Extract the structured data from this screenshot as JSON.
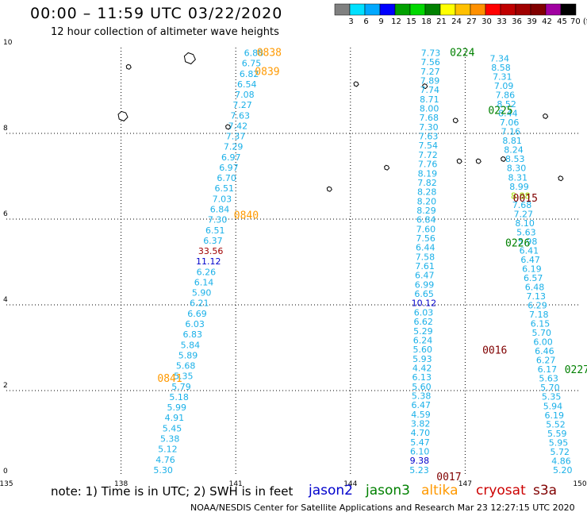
{
  "title": "00:00 – 11:59 UTC 03/22/2020",
  "subtitle": "12 hour collection of altimeter wave heights",
  "note": "note: 1) Time is in UTC; 2) SWH is in feet",
  "credit": "NOAA/NESDIS Center for Satellite Applications and Research   Mar 23 12:27:15 UTC 2020",
  "colorbar": {
    "colors": [
      "#808080",
      "#00e0ff",
      "#00a8ff",
      "#0000ff",
      "#00a000",
      "#00d800",
      "#008000",
      "#ffff00",
      "#ffc000",
      "#ff9000",
      "#ff0000",
      "#c00000",
      "#a00000",
      "#800000",
      "#a000a0",
      "#000000"
    ],
    "labels": [
      "3",
      "6",
      "9",
      "12",
      "15",
      "18",
      "21",
      "24",
      "27",
      "30",
      "33",
      "36",
      "39",
      "42",
      "45",
      "70 (ft)"
    ]
  },
  "map": {
    "lon_range": [
      135,
      150
    ],
    "lat_range": [
      0,
      10
    ],
    "lon_ticks": [
      "135",
      "138",
      "141",
      "144",
      "147",
      "150"
    ],
    "lat_ticks": [
      "0",
      "2",
      "4",
      "6",
      "8",
      "10"
    ]
  },
  "satellites": [
    {
      "name": "jason2",
      "color": "#0000cc"
    },
    {
      "name": "jason3",
      "color": "#008000"
    },
    {
      "name": "altika",
      "color": "#ff9900"
    },
    {
      "name": "cryosat",
      "color": "#cc0000"
    },
    {
      "name": "s3a",
      "color": "#800000"
    }
  ],
  "time_labels": [
    {
      "text": "0838",
      "color": "#ff9900",
      "lon": 141.55,
      "lat": 9.9
    },
    {
      "text": "0839",
      "color": "#ff9900",
      "lon": 141.5,
      "lat": 9.45
    },
    {
      "text": "0840",
      "color": "#ff9900",
      "lon": 140.95,
      "lat": 6.1
    },
    {
      "text": "0841",
      "color": "#ff9900",
      "lon": 138.95,
      "lat": 2.3
    },
    {
      "text": "0224",
      "color": "#008000",
      "lon": 146.6,
      "lat": 9.9
    },
    {
      "text": "0225",
      "color": "#008000",
      "lon": 147.6,
      "lat": 8.55
    },
    {
      "text": "0226",
      "color": "#008000",
      "lon": 148.05,
      "lat": 5.45
    },
    {
      "text": "0227",
      "color": "#008000",
      "lon": 149.6,
      "lat": 2.5
    },
    {
      "text": "0015",
      "color": "#800000",
      "lon": 148.25,
      "lat": 6.5
    },
    {
      "text": "0016",
      "color": "#800000",
      "lon": 147.45,
      "lat": 2.95
    },
    {
      "text": "0017",
      "color": "#800000",
      "lon": 146.25,
      "lat": 0.0
    }
  ],
  "tracks": [
    {
      "satellite": "altika",
      "lon_start": 141.47,
      "lat_start": 9.88,
      "lon_end": 139.1,
      "lat_end": 0.15,
      "values": [
        "6.88",
        "6.75",
        "6.82",
        "6.54",
        "7.08",
        "7.27",
        "7.63",
        "7.42",
        "7.37",
        "7.29",
        "6.97",
        "6.97",
        "6.70",
        "6.51",
        "7.03",
        "6.84",
        "7.30",
        "6.51",
        "6.37",
        "33.56",
        "11.12",
        "6.26",
        "6.14",
        "5.90",
        "6.21",
        "6.69",
        "6.03",
        "6.83",
        "5.84",
        "5.89",
        "5.68",
        "5.35",
        "5.79",
        "5.18",
        "5.99",
        "4.91",
        "5.45",
        "5.38",
        "5.12",
        "4.76",
        "5.30"
      ],
      "colors": {
        "19": "#a00000",
        "20": "#0000cc"
      }
    },
    {
      "satellite": "jason3",
      "lon_start": 146.1,
      "lat_start": 9.88,
      "lon_end": 145.8,
      "lat_end": 0.15,
      "values": [
        "7.73",
        "7.56",
        "7.27",
        "7.89",
        "7.74",
        "8.71",
        "8.00",
        "7.68",
        "7.30",
        "7.63",
        "7.54",
        "7.72",
        "7.76",
        "8.19",
        "7.82",
        "8.28",
        "8.20",
        "8.29",
        "6.84",
        "7.60",
        "7.56",
        "6.44",
        "7.58",
        "7.61",
        "6.47",
        "6.99",
        "6.65",
        "10.12",
        "6.03",
        "6.62",
        "5.29",
        "6.24",
        "5.60",
        "5.93",
        "4.42",
        "6.13",
        "5.60",
        "5.38",
        "6.47",
        "4.59",
        "3.82",
        "4.70",
        "5.47",
        "6.10",
        "9.38",
        "5.23"
      ],
      "colors": {
        "27": "#0000cc",
        "44": "#0000cc"
      }
    },
    {
      "satellite": "s3a",
      "lon_start": 147.9,
      "lat_start": 9.75,
      "lon_end": 149.55,
      "lat_end": 0.15,
      "values": [
        "7.34",
        "8.58",
        "7.31",
        "7.09",
        "7.86",
        "8.52",
        "8.44",
        "7.06",
        "7.16",
        "8.81",
        "8.24",
        "8.53",
        "8.30",
        "8.31",
        "8.99",
        "8.88",
        "7.68",
        "7.27",
        "8.10",
        "5.63",
        "5.98",
        "6.41",
        "6.47",
        "6.19",
        "6.57",
        "6.48",
        "7.13",
        "6.29",
        "7.18",
        "6.15",
        "5.70",
        "6.00",
        "6.46",
        "6.27",
        "6.17",
        "5.63",
        "5.70",
        "5.35",
        "5.94",
        "6.19",
        "5.52",
        "5.59",
        "5.95",
        "5.72",
        "4.86",
        "5.20"
      ],
      "colors": {
        "15": "#a0e000"
      }
    }
  ],
  "islands": [
    {
      "lon": 138.2,
      "lat": 9.55
    },
    {
      "lon": 139.8,
      "lat": 9.75
    },
    {
      "lon": 138.05,
      "lat": 8.4
    },
    {
      "lon": 140.8,
      "lat": 8.15
    },
    {
      "lon": 144.95,
      "lat": 7.2
    },
    {
      "lon": 143.45,
      "lat": 6.7
    },
    {
      "lon": 145.95,
      "lat": 9.1
    },
    {
      "lon": 146.75,
      "lat": 8.3
    },
    {
      "lon": 146.85,
      "lat": 7.35
    },
    {
      "lon": 147.35,
      "lat": 7.35
    },
    {
      "lon": 148.0,
      "lat": 7.4
    },
    {
      "lon": 149.1,
      "lat": 8.4
    },
    {
      "lon": 149.5,
      "lat": 6.95
    },
    {
      "lon": 144.15,
      "lat": 9.15
    }
  ]
}
